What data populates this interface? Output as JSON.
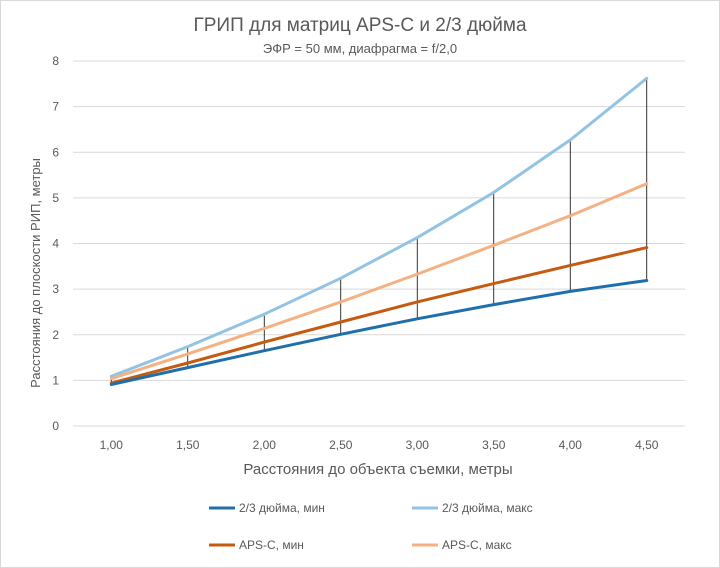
{
  "chart_data": {
    "type": "line",
    "title": "ГРИП для матриц APS-C и 2/3 дюйма",
    "subtitle": "ЭФР = 50 мм, диафрагма = f/2,0",
    "xlabel": "Расстояния до объекта съемки, метры",
    "ylabel": "Расстояния до плоскости РИП, метры",
    "x": [
      1.0,
      1.5,
      2.0,
      2.5,
      3.0,
      3.5,
      4.0,
      4.5
    ],
    "x_tick_labels": [
      "1,00",
      "1,50",
      "2,00",
      "2,50",
      "3,00",
      "3,50",
      "4,00",
      "4,50"
    ],
    "y_ticks": [
      0,
      1,
      2,
      3,
      4,
      5,
      6,
      7,
      8
    ],
    "y_tick_labels": [
      "0",
      "1",
      "2",
      "3",
      "4",
      "5",
      "6",
      "7",
      "8"
    ],
    "ylim": [
      0,
      8
    ],
    "grid": "horizontal",
    "legend": "bottom",
    "series": [
      {
        "name": "2/3 дюйма, мин",
        "color": "#1f6fab",
        "values": [
          0.91,
          1.28,
          1.65,
          2.01,
          2.35,
          2.66,
          2.95,
          3.19
        ]
      },
      {
        "name": "2/3 дюйма, макс",
        "color": "#93c3e3",
        "values": [
          1.09,
          1.74,
          2.45,
          3.24,
          4.13,
          5.12,
          6.27,
          7.62
        ]
      },
      {
        "name": "APS-C, мин",
        "color": "#c55a11",
        "values": [
          0.94,
          1.38,
          1.84,
          2.28,
          2.72,
          3.12,
          3.52,
          3.91
        ]
      },
      {
        "name": "APS-C, макс",
        "color": "#f4b183",
        "values": [
          1.04,
          1.58,
          2.14,
          2.72,
          3.33,
          3.96,
          4.61,
          5.31
        ]
      }
    ],
    "drop_lines": {
      "from_series": 0,
      "to_series": 1,
      "color": "#000000"
    }
  }
}
